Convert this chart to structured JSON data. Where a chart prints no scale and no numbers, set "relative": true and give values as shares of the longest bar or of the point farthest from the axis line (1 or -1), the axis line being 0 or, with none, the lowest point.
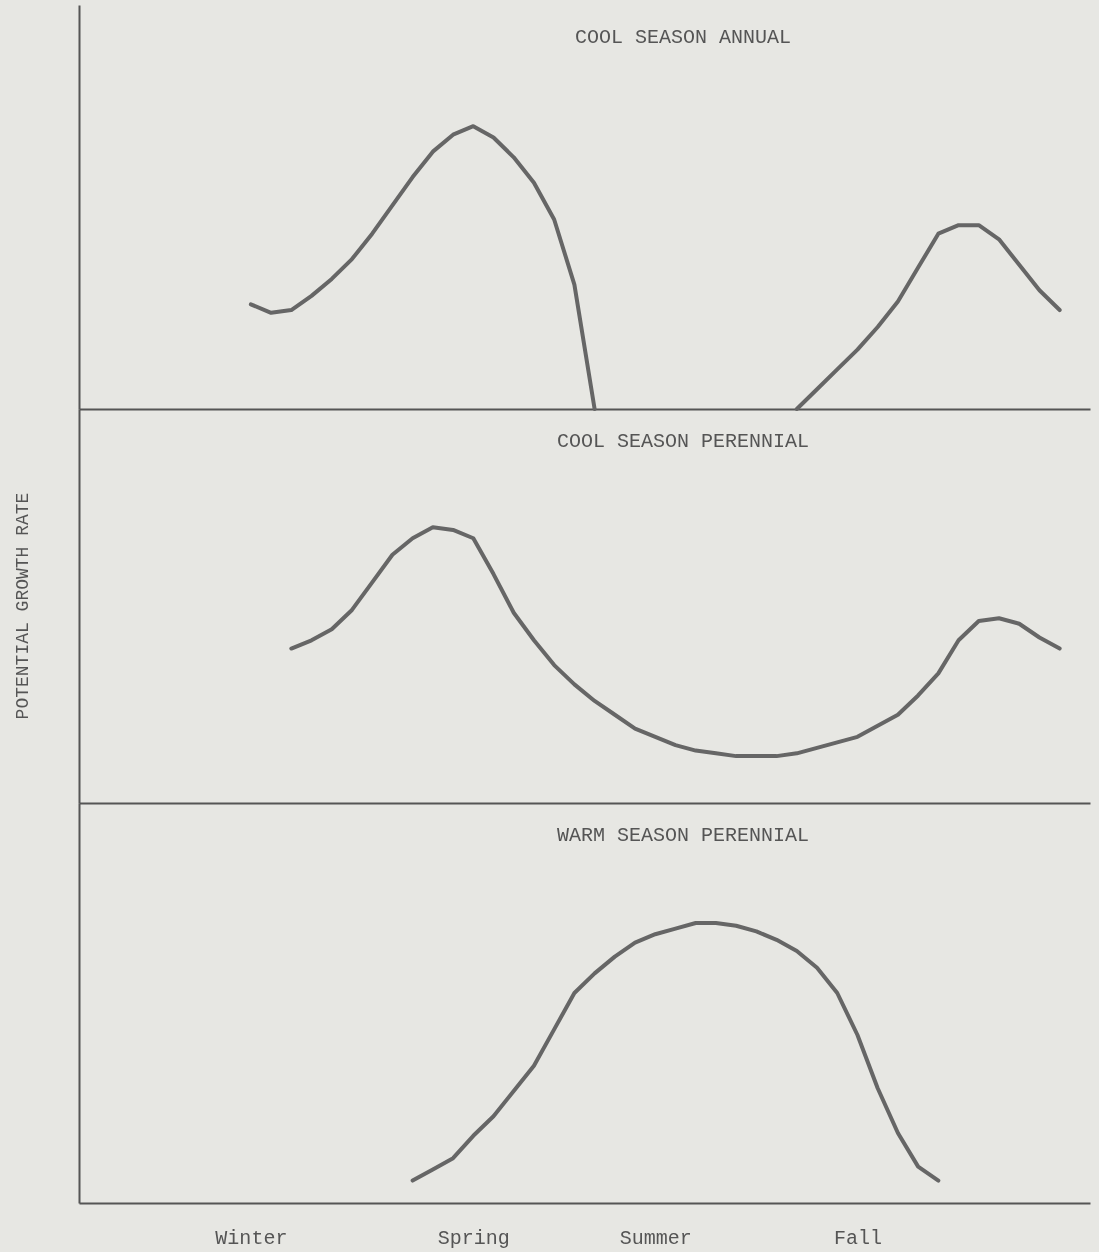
{
  "chart_data": [
    {
      "type": "line",
      "title": "COOL SEASON ANNUAL",
      "relative": true,
      "tick_labels": false,
      "categories": [
        null,
        null,
        null,
        null,
        null,
        null,
        null,
        null,
        null,
        null,
        null,
        null,
        null,
        null,
        null,
        null,
        null,
        null,
        null,
        null,
        null,
        null,
        null,
        null,
        null,
        null,
        null,
        null,
        null,
        null,
        null,
        null,
        null,
        null,
        null,
        null,
        null,
        null,
        null,
        null,
        null,
        null,
        null,
        null,
        null,
        null,
        null,
        null,
        null,
        null
      ],
      "series": [
        {
          "color": "#666666",
          "values": [
            null,
            null,
            null,
            null,
            null,
            null,
            null,
            null,
            0.37,
            0.34,
            0.35,
            0.4,
            0.46,
            0.53,
            0.62,
            0.72,
            0.82,
            0.91,
            0.97,
            1,
            0.96,
            0.89,
            0.8,
            0.67,
            0.44,
            0,
            null,
            null,
            null,
            null,
            null,
            null,
            null,
            null,
            null,
            null,
            null,
            null,
            null,
            null,
            null,
            null,
            null,
            null,
            null,
            null,
            null,
            null,
            null,
            null
          ]
        },
        {
          "color": "#666666",
          "values": [
            null,
            null,
            null,
            null,
            null,
            null,
            null,
            null,
            null,
            null,
            null,
            null,
            null,
            null,
            null,
            null,
            null,
            null,
            null,
            null,
            null,
            null,
            null,
            null,
            null,
            null,
            null,
            null,
            null,
            null,
            null,
            null,
            null,
            null,
            null,
            0,
            0.07,
            0.14,
            0.21,
            0.29,
            0.38,
            0.5,
            0.62,
            0.65,
            0.65,
            0.6,
            0.51,
            0.42,
            0.35,
            null
          ]
        }
      ]
    },
    {
      "type": "line",
      "title": "COOL SEASON PERENNIAL",
      "ylabel": "POTENTIAL GROWTH RATE",
      "relative": true,
      "tick_labels": false,
      "categories": [
        null,
        null,
        null,
        null,
        null,
        null,
        null,
        null,
        null,
        null,
        null,
        null,
        null,
        null,
        null,
        null,
        null,
        null,
        null,
        null,
        null,
        null,
        null,
        null,
        null,
        null,
        null,
        null,
        null,
        null,
        null,
        null,
        null,
        null,
        null,
        null,
        null,
        null,
        null,
        null,
        null,
        null,
        null,
        null,
        null,
        null,
        null,
        null,
        null,
        null
      ],
      "series": [
        {
          "color": "#666666",
          "values": [
            null,
            null,
            null,
            null,
            null,
            null,
            null,
            null,
            null,
            null,
            0.56,
            0.59,
            0.63,
            0.7,
            0.8,
            0.9,
            0.96,
            1,
            0.99,
            0.96,
            0.83,
            0.69,
            0.59,
            0.5,
            0.43,
            0.37,
            0.32,
            0.27,
            0.24,
            0.21,
            0.19,
            0.18,
            0.17,
            0.17,
            0.17,
            0.18,
            0.2,
            0.22,
            0.24,
            0.28,
            0.32,
            0.39,
            0.47,
            0.59,
            0.66,
            0.67,
            0.65,
            0.6,
            0.56,
            null
          ]
        }
      ]
    },
    {
      "type": "line",
      "title": "WARM SEASON PERENNIAL",
      "relative": true,
      "tick_labels": "x",
      "categories": [
        null,
        null,
        null,
        null,
        null,
        null,
        null,
        null,
        "Winter",
        null,
        null,
        null,
        null,
        null,
        null,
        null,
        null,
        null,
        null,
        "Spring",
        null,
        null,
        null,
        null,
        null,
        null,
        null,
        null,
        "Summer",
        null,
        null,
        null,
        null,
        null,
        null,
        null,
        null,
        null,
        "Fall",
        null,
        null,
        null,
        null,
        null,
        null,
        null,
        null,
        null,
        null,
        null
      ],
      "series": [
        {
          "color": "#666666",
          "values": [
            null,
            null,
            null,
            null,
            null,
            null,
            null,
            null,
            null,
            null,
            null,
            null,
            null,
            null,
            null,
            null,
            0.08,
            0.12,
            0.16,
            0.24,
            0.31,
            0.4,
            0.49,
            0.62,
            0.75,
            0.82,
            0.88,
            0.93,
            0.96,
            0.98,
            1,
            1,
            0.99,
            0.97,
            0.94,
            0.9,
            0.84,
            0.75,
            0.6,
            0.41,
            0.25,
            0.13,
            0.08,
            null,
            null,
            null,
            null,
            null,
            null,
            null
          ]
        }
      ]
    }
  ]
}
